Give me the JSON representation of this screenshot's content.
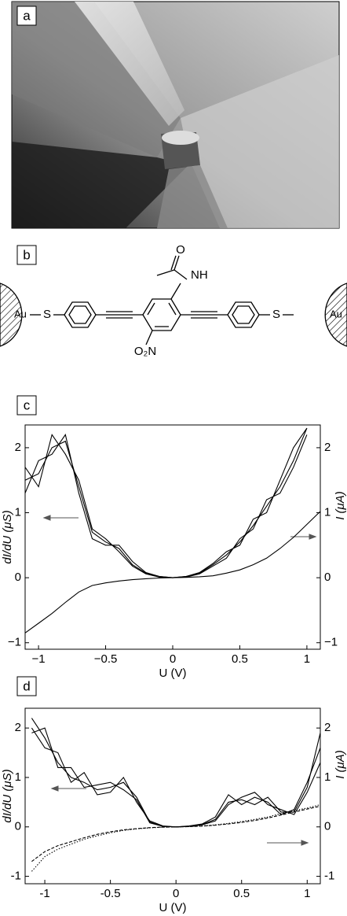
{
  "figure": {
    "panel_labels": [
      "a",
      "b"
    ],
    "molecule": {
      "labels": [
        "Au",
        "S",
        "O",
        "NH",
        "O₂N",
        "S",
        "Au"
      ]
    }
  },
  "chart_data": [
    {
      "type": "line",
      "label": "c",
      "xlabel": "U (V)",
      "ylabel": "dI/dU (μS)",
      "y2label": "I (μA)",
      "x": [
        -1.1,
        -1.0,
        -0.9,
        -0.8,
        -0.7,
        -0.6,
        -0.5,
        -0.4,
        -0.3,
        -0.2,
        -0.1,
        0,
        0.1,
        0.2,
        0.3,
        0.4,
        0.5,
        0.6,
        0.7,
        0.8,
        0.9,
        1.0,
        1.1
      ],
      "xlim": [
        -1.1,
        1.1
      ],
      "xticks": [
        {
          "value": -1,
          "label": "−1"
        },
        {
          "value": -0.5,
          "label": "−0.5"
        },
        0,
        0.5,
        1
      ],
      "ylim": [
        -1.1,
        2.35
      ],
      "yticks": [
        {
          "value": -1,
          "label": "−1"
        },
        0,
        1,
        2
      ],
      "y2lim": [
        -1.1,
        2.35
      ],
      "y2ticks": [
        {
          "value": -1,
          "label": "−1"
        },
        0,
        1,
        2
      ],
      "series": [
        {
          "color": "#000",
          "style": "solid",
          "values": [
            1.5,
            1.6,
            2.0,
            2.1,
            1.4,
            0.7,
            0.55,
            0.45,
            0.2,
            0.07,
            0.02,
            0,
            0.02,
            0.07,
            0.2,
            0.35,
            0.55,
            0.8,
            1.1,
            1.4,
            1.8,
            2.3,
            null
          ]
        },
        {
          "color": "#000",
          "style": "solid",
          "values": [
            1.3,
            1.8,
            1.9,
            2.2,
            1.3,
            0.6,
            0.5,
            0.5,
            0.25,
            0.08,
            0.02,
            0,
            0.02,
            0.08,
            0.22,
            0.4,
            0.5,
            0.9,
            1.0,
            1.5,
            2.0,
            2.3,
            null
          ]
        },
        {
          "color": "#000",
          "style": "solid",
          "values": [
            1.7,
            1.4,
            2.2,
            1.9,
            1.5,
            0.75,
            0.6,
            0.4,
            0.18,
            0.06,
            0.01,
            0,
            0.01,
            0.06,
            0.18,
            0.3,
            0.6,
            0.75,
            1.2,
            1.3,
            1.7,
            2.2,
            null
          ]
        },
        {
          "color": "#000",
          "style": "solid",
          "axis": "y2",
          "values": [
            -0.85,
            -0.7,
            -0.55,
            -0.38,
            -0.22,
            -0.12,
            -0.08,
            -0.05,
            -0.03,
            -0.015,
            -0.005,
            0,
            0.005,
            0.015,
            0.03,
            0.07,
            0.12,
            0.2,
            0.3,
            0.45,
            0.62,
            0.82,
            1.02
          ]
        }
      ]
    },
    {
      "type": "line",
      "label": "d",
      "xlabel": "U (V)",
      "ylabel": "dI/dU (μS)",
      "y2label": "I (μA)",
      "x": [
        -1.1,
        -1.0,
        -0.9,
        -0.8,
        -0.7,
        -0.6,
        -0.5,
        -0.4,
        -0.3,
        -0.2,
        -0.1,
        0,
        0.1,
        0.2,
        0.3,
        0.4,
        0.5,
        0.6,
        0.7,
        0.8,
        0.9,
        1.0,
        1.1
      ],
      "xlim": [
        -1.15,
        1.1
      ],
      "xticks": [
        -1,
        -0.5,
        0,
        0.5,
        1
      ],
      "ylim": [
        -1.15,
        2.4
      ],
      "yticks": [
        -1,
        0,
        1,
        2
      ],
      "y2lim": [
        -1.15,
        2.4
      ],
      "y2ticks": [
        -1,
        0,
        1,
        2
      ],
      "series": [
        {
          "color": "#000",
          "style": "solid",
          "values": [
            2.2,
            1.8,
            1.3,
            1.0,
            0.9,
            0.75,
            0.8,
            0.9,
            0.6,
            0.1,
            0.01,
            0,
            0.01,
            0.05,
            0.15,
            0.5,
            0.55,
            0.45,
            0.6,
            0.3,
            0.3,
            0.8,
            1.9
          ]
        },
        {
          "color": "#000",
          "style": "solid",
          "values": [
            2.0,
            1.6,
            1.5,
            0.9,
            1.1,
            0.65,
            0.7,
            1.0,
            0.5,
            0.12,
            0.02,
            0,
            0.02,
            0.06,
            0.2,
            0.65,
            0.45,
            0.6,
            0.5,
            0.25,
            0.35,
            0.9,
            1.6
          ]
        },
        {
          "color": "#000",
          "style": "solid",
          "values": [
            1.9,
            2.0,
            1.2,
            1.2,
            0.8,
            0.85,
            0.9,
            0.75,
            0.55,
            0.08,
            0.01,
            0,
            0.01,
            0.04,
            0.12,
            0.45,
            0.6,
            0.7,
            0.45,
            0.35,
            0.25,
            0.7,
            1.3
          ]
        },
        {
          "color": "#000",
          "style": "dotted",
          "axis": "y2",
          "values": [
            -0.9,
            -0.6,
            -0.45,
            -0.35,
            -0.25,
            -0.18,
            -0.12,
            -0.07,
            -0.04,
            -0.02,
            -0.005,
            0,
            0.005,
            0.02,
            0.04,
            0.07,
            0.11,
            0.15,
            0.2,
            0.27,
            0.33,
            0.38,
            0.45
          ]
        },
        {
          "color": "#000",
          "style": "dashed",
          "axis": "y2",
          "values": [
            -0.7,
            -0.5,
            -0.38,
            -0.3,
            -0.22,
            -0.15,
            -0.1,
            -0.06,
            -0.035,
            -0.015,
            -0.005,
            0,
            0.005,
            0.015,
            0.035,
            0.06,
            0.09,
            0.13,
            0.18,
            0.24,
            0.3,
            0.36,
            0.42
          ]
        }
      ]
    }
  ]
}
